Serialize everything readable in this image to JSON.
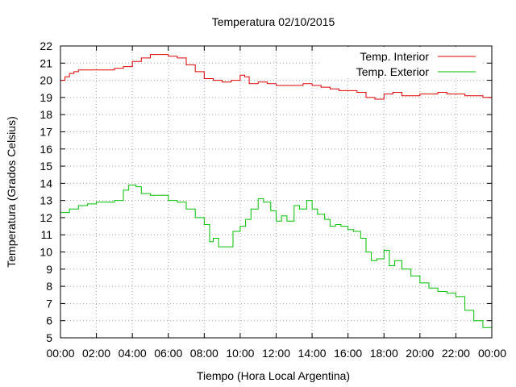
{
  "chart_data": {
    "type": "line",
    "title": "Temperatura 02/10/2015",
    "xlabel": "Tiempo (Hora Local Argentina)",
    "ylabel": "Temperatura (Grados Celsius)",
    "xlim": [
      0,
      24
    ],
    "ylim": [
      5,
      22
    ],
    "grid": true,
    "legend_position": "top-right",
    "x_tick_labels": [
      "00:00",
      "02:00",
      "04:00",
      "06:00",
      "08:00",
      "10:00",
      "12:00",
      "14:00",
      "16:00",
      "18:00",
      "20:00",
      "22:00",
      "00:00"
    ],
    "y_ticks": [
      5,
      6,
      7,
      8,
      9,
      10,
      11,
      12,
      13,
      14,
      15,
      16,
      17,
      18,
      19,
      20,
      21,
      22
    ],
    "series": [
      {
        "name": "Temp. Interior",
        "color": "#e00000",
        "x": [
          0,
          0.25,
          0.5,
          0.75,
          1,
          1.5,
          2,
          2.5,
          3,
          3.5,
          4,
          4.5,
          5,
          5.5,
          6,
          6.5,
          7,
          7.5,
          8,
          8.5,
          9,
          9.5,
          10,
          10.25,
          10.5,
          11,
          11.5,
          12,
          12.5,
          13,
          13.5,
          14,
          14.5,
          15,
          15.5,
          16,
          16.5,
          17,
          17.5,
          18,
          18.5,
          19,
          19.5,
          20,
          20.5,
          21,
          21.5,
          22,
          22.5,
          23,
          23.5,
          24
        ],
        "y": [
          20.0,
          20.2,
          20.4,
          20.5,
          20.6,
          20.6,
          20.6,
          20.6,
          20.7,
          20.8,
          21.1,
          21.3,
          21.5,
          21.5,
          21.4,
          21.3,
          20.9,
          20.5,
          20.1,
          20.0,
          19.9,
          20.0,
          20.3,
          20.2,
          19.8,
          19.9,
          19.8,
          19.7,
          19.7,
          19.7,
          19.8,
          19.7,
          19.6,
          19.5,
          19.4,
          19.4,
          19.3,
          19.0,
          18.9,
          19.2,
          19.3,
          19.1,
          19.1,
          19.2,
          19.2,
          19.3,
          19.2,
          19.2,
          19.1,
          19.1,
          19.0,
          19.0
        ]
      },
      {
        "name": "Temp. Exterior",
        "color": "#00c000",
        "x": [
          0,
          0.5,
          1,
          1.5,
          2,
          2.5,
          3,
          3.5,
          3.8,
          4.2,
          4.5,
          5,
          5.5,
          6,
          6.5,
          7,
          7.5,
          8,
          8.3,
          8.5,
          8.8,
          9,
          9.3,
          9.6,
          10,
          10.3,
          10.6,
          11,
          11.3,
          11.7,
          12,
          12.3,
          12.6,
          13,
          13.3,
          13.7,
          14,
          14.3,
          14.7,
          15,
          15.3,
          15.6,
          16,
          16.3,
          16.7,
          17,
          17.3,
          17.6,
          18,
          18.3,
          18.6,
          19,
          19.5,
          20,
          20.5,
          21,
          21.5,
          22,
          22.5,
          23,
          23.5,
          24
        ],
        "y": [
          12.3,
          12.5,
          12.7,
          12.8,
          12.9,
          12.9,
          13.0,
          13.6,
          13.9,
          13.8,
          13.4,
          13.3,
          13.3,
          13.0,
          12.9,
          12.5,
          12.0,
          11.6,
          10.6,
          10.8,
          10.3,
          10.3,
          10.3,
          11.2,
          11.5,
          11.9,
          12.5,
          13.1,
          12.9,
          12.4,
          11.8,
          12.1,
          11.8,
          12.7,
          12.5,
          13.0,
          12.5,
          12.2,
          11.9,
          11.5,
          11.6,
          11.5,
          11.3,
          11.2,
          10.8,
          10.0,
          9.5,
          9.6,
          10.1,
          9.2,
          9.5,
          9.0,
          8.6,
          8.2,
          7.9,
          7.7,
          7.6,
          7.4,
          6.6,
          6.0,
          5.6,
          5.1
        ]
      }
    ]
  }
}
